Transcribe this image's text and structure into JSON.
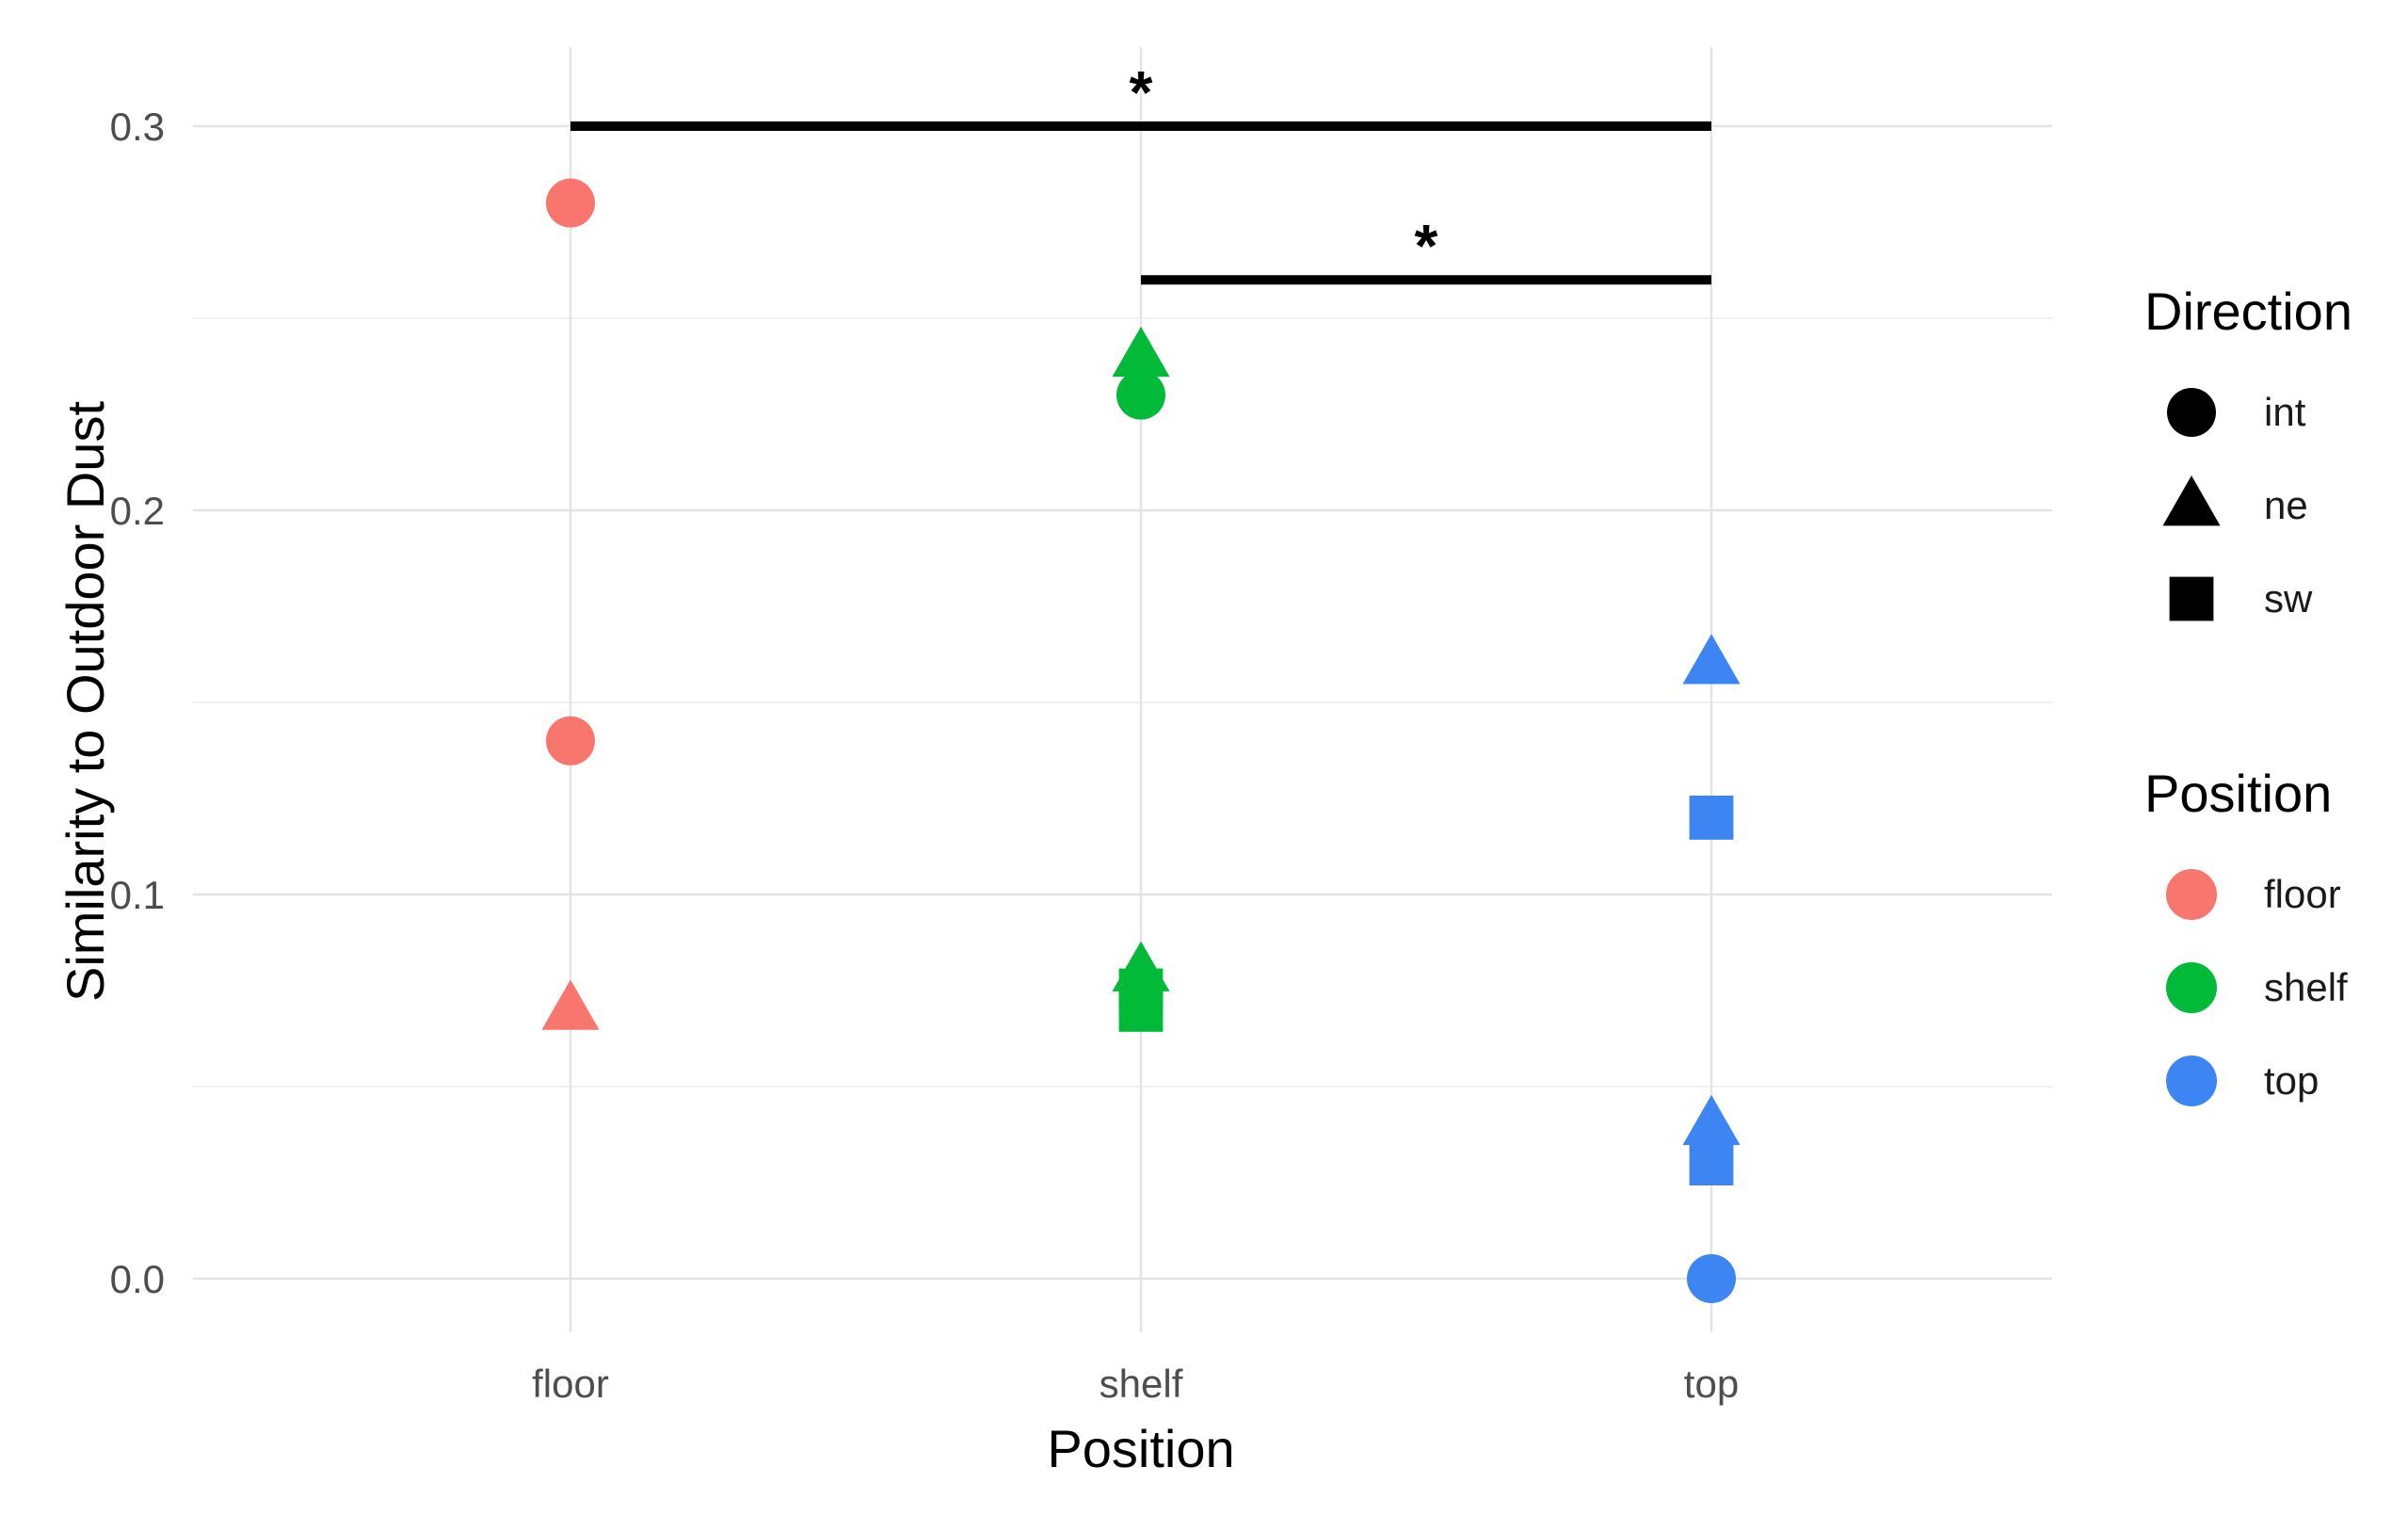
{
  "chart_data": {
    "type": "scatter",
    "title": "",
    "xlabel": "Position",
    "ylabel": "Similarity to Outdoor Dust",
    "categories": [
      "floor",
      "shelf",
      "top"
    ],
    "ylim": [
      -0.015,
      0.31
    ],
    "yticks": [
      {
        "value": 0.0,
        "label": "0.0"
      },
      {
        "value": 0.1,
        "label": "0.1"
      },
      {
        "value": 0.2,
        "label": "0.2"
      },
      {
        "value": 0.3,
        "label": "0.3"
      }
    ],
    "grid": true,
    "colors": {
      "floor": "#F8766D",
      "shelf": "#00BA38",
      "top": "#3D85F2"
    },
    "points": [
      {
        "position": "floor",
        "direction": "int",
        "y": 0.28
      },
      {
        "position": "floor",
        "direction": "int",
        "y": 0.14
      },
      {
        "position": "floor",
        "direction": "ne",
        "y": 0.07
      },
      {
        "position": "shelf",
        "direction": "ne",
        "y": 0.24
      },
      {
        "position": "shelf",
        "direction": "int",
        "y": 0.23
      },
      {
        "position": "shelf",
        "direction": "sw",
        "y": 0.07
      },
      {
        "position": "shelf",
        "direction": "sw",
        "y": 0.075
      },
      {
        "position": "shelf",
        "direction": "ne",
        "y": 0.08
      },
      {
        "position": "top",
        "direction": "ne",
        "y": 0.16
      },
      {
        "position": "top",
        "direction": "sw",
        "y": 0.12
      },
      {
        "position": "top",
        "direction": "ne",
        "y": 0.04
      },
      {
        "position": "top",
        "direction": "sw",
        "y": 0.03
      },
      {
        "position": "top",
        "direction": "int",
        "y": 0.0
      }
    ],
    "significance": [
      {
        "from": "floor",
        "to": "top",
        "y": 0.3,
        "label": "*"
      },
      {
        "from": "shelf",
        "to": "top",
        "y": 0.26,
        "label": "*"
      }
    ],
    "legend_position": "right",
    "legends": [
      {
        "title": "Direction",
        "items": [
          {
            "label": "int",
            "shape": "circle"
          },
          {
            "label": "ne",
            "shape": "triangle"
          },
          {
            "label": "sw",
            "shape": "square"
          }
        ]
      },
      {
        "title": "Position",
        "items": [
          {
            "label": "floor",
            "color": "#F8766D"
          },
          {
            "label": "shelf",
            "color": "#00BA38"
          },
          {
            "label": "top",
            "color": "#3D85F2"
          }
        ]
      }
    ]
  }
}
